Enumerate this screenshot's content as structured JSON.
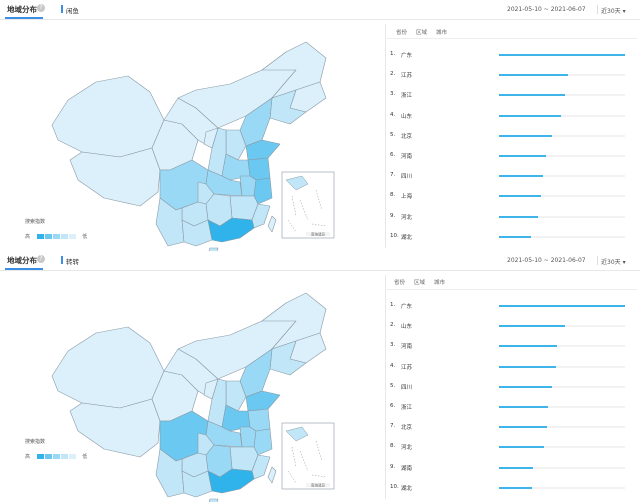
{
  "panels": [
    {
      "title": "地域分布",
      "help": "?",
      "keyword": "闲鱼",
      "date_range": "2021-05-10 ~ 2021-06-07",
      "period": "近30天",
      "dropdown": "▾",
      "tabs": [
        "省份",
        "区域",
        "城市"
      ],
      "legend": {
        "title": "搜索指数",
        "high": "高",
        "low": "低"
      },
      "inset_label": "南海诸岛",
      "ranking": [
        {
          "rank": "1.",
          "name": "广东",
          "value": 100
        },
        {
          "rank": "2.",
          "name": "江苏",
          "value": 55
        },
        {
          "rank": "3.",
          "name": "浙江",
          "value": 52
        },
        {
          "rank": "4.",
          "name": "山东",
          "value": 49
        },
        {
          "rank": "5.",
          "name": "北京",
          "value": 42
        },
        {
          "rank": "6.",
          "name": "河南",
          "value": 37
        },
        {
          "rank": "7.",
          "name": "四川",
          "value": 35
        },
        {
          "rank": "8.",
          "name": "上海",
          "value": 33
        },
        {
          "rank": "9.",
          "name": "河北",
          "value": 31
        },
        {
          "rank": "10.",
          "name": "湖北",
          "value": 25
        }
      ]
    },
    {
      "title": "地域分布",
      "help": "?",
      "keyword": "转转",
      "date_range": "2021-05-10 ~ 2021-06-07",
      "period": "近30天",
      "dropdown": "▾",
      "tabs": [
        "省份",
        "区域",
        "城市"
      ],
      "legend": {
        "title": "搜索指数",
        "high": "高",
        "low": "低"
      },
      "inset_label": "南海诸岛",
      "ranking": [
        {
          "rank": "1.",
          "name": "广东",
          "value": 100
        },
        {
          "rank": "2.",
          "name": "山东",
          "value": 52
        },
        {
          "rank": "3.",
          "name": "河南",
          "value": 46
        },
        {
          "rank": "4.",
          "name": "江苏",
          "value": 45
        },
        {
          "rank": "5.",
          "name": "四川",
          "value": 42
        },
        {
          "rank": "6.",
          "name": "浙江",
          "value": 39
        },
        {
          "rank": "7.",
          "name": "北京",
          "value": 38
        },
        {
          "rank": "8.",
          "name": "河北",
          "value": 36
        },
        {
          "rank": "9.",
          "name": "湖南",
          "value": 27
        },
        {
          "rank": "10.",
          "name": "湖北",
          "value": 26
        }
      ]
    }
  ],
  "colors": {
    "accent": "#3a8ee6",
    "bar": "#3fb4e9",
    "map_level_1": "#2fb3ea",
    "map_level_2": "#6bc8f0",
    "map_level_3": "#9ad9f5",
    "map_level_4": "#c0e6f8",
    "map_level_5": "#dbf0fb",
    "map_border": "#8a9aa6"
  }
}
